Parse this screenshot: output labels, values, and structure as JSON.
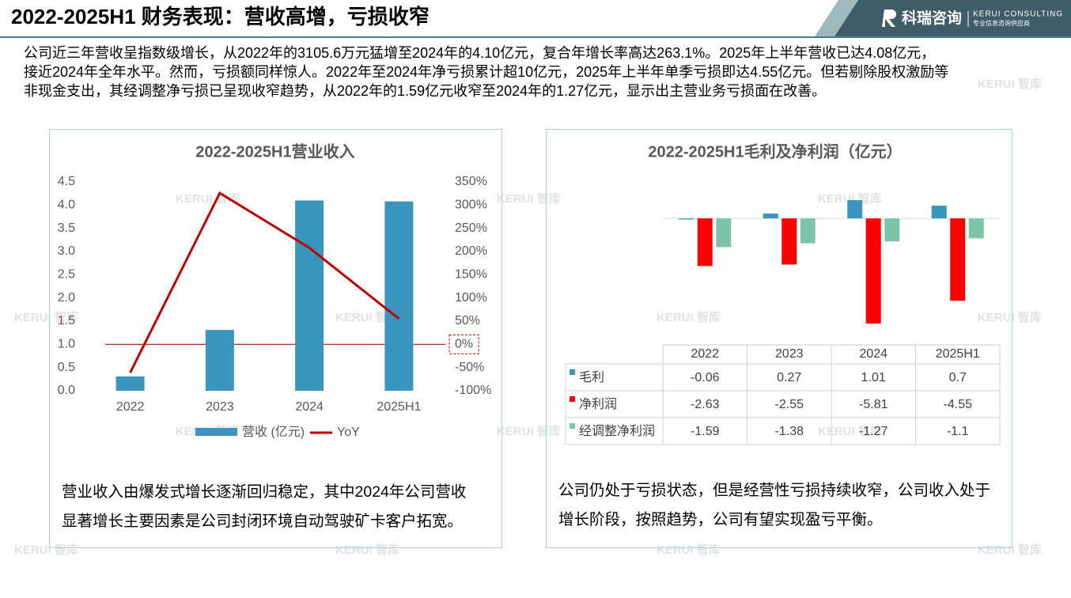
{
  "header": {
    "title": "2022-2025H1 财务表现：营收高增，亏损收窄",
    "brand": "科瑞咨询",
    "brand_en": "KERUI CONSULTING",
    "brand_sub": "专业信息咨询供应商"
  },
  "watermark": "KERUI 智库",
  "intro": [
    "公司近三年营收呈指数级增长，从2022年的3105.6万元猛增至2024年的4.10亿元，复合年增长率高达263.1%。2025年上半年营收已达4.08亿元，",
    "接近2024年全年水平。然而，亏损额同样惊人。2022年至2024年净亏损累计超10亿元，2025年上半年单季亏损即达4.55亿元。但若剔除股权激励等",
    "非现金支出，其经调整净亏损已呈现收窄趋势，从2022年的1.59亿元收窄至2024年的1.27亿元，显示出主营业务亏损面在改善。"
  ],
  "captions": [
    [
      "营业收入由爆发式增长逐渐回归稳定，其中2024年公司营收",
      "显著增长主要因素是公司封闭环境自动驾驶矿卡客户拓宽。"
    ],
    [
      "公司仍处于亏损状态，但是经营性亏损持续收窄，公司收入处于",
      "增长阶段，按照趋势，公司有望实现盈亏平衡。"
    ]
  ],
  "chart_data": [
    {
      "type": "combo",
      "title": "2022-2025H1营业收入",
      "categories": [
        "2022",
        "2023",
        "2024",
        "2025H1"
      ],
      "series": [
        {
          "name": "营收 (亿元)",
          "type": "bar",
          "color": "#3a96bd",
          "values": [
            0.31,
            1.31,
            4.1,
            4.08
          ]
        },
        {
          "name": "YoY",
          "type": "line",
          "axis": "y2",
          "color": "#c00000",
          "values": [
            -61,
            326,
            208,
            55
          ]
        }
      ],
      "ylim": [
        0,
        4.5
      ],
      "yticks": [
        {
          "value": 0,
          "label": "0.0"
        },
        {
          "value": 0.5,
          "label": "0.5"
        },
        {
          "value": 1,
          "label": "1.0"
        },
        {
          "value": 1.5,
          "label": "1.5"
        },
        {
          "value": 2,
          "label": "2.0"
        },
        {
          "value": 2.5,
          "label": "2.5"
        },
        {
          "value": 3,
          "label": "3.0"
        },
        {
          "value": 3.5,
          "label": "3.5"
        },
        {
          "value": 4,
          "label": "4.0"
        },
        {
          "value": 4.5,
          "label": "4.5"
        }
      ],
      "y2lim": [
        -100,
        350
      ],
      "y2ticks": [
        {
          "value": -100,
          "label": "-100%"
        },
        {
          "value": -50,
          "label": "-50%"
        },
        {
          "value": 0,
          "label": "0%"
        },
        {
          "value": 50,
          "label": "50%"
        },
        {
          "value": 100,
          "label": "100%"
        },
        {
          "value": 150,
          "label": "150%"
        },
        {
          "value": 200,
          "label": "200%"
        },
        {
          "value": 250,
          "label": "250%"
        },
        {
          "value": 300,
          "label": "300%"
        },
        {
          "value": 350,
          "label": "350%"
        }
      ],
      "legend": "bottom"
    },
    {
      "type": "bar",
      "title": "2022-2025H1毛利及净利润（亿元）",
      "categories": [
        "2022",
        "2023",
        "2024",
        "2025H1"
      ],
      "series": [
        {
          "name": "毛利",
          "color": "#3a96bd",
          "values": [
            -0.06,
            0.27,
            1.01,
            0.7
          ]
        },
        {
          "name": "净利润",
          "color": "#ff0000",
          "values": [
            -2.63,
            -2.55,
            -5.81,
            -4.55
          ]
        },
        {
          "name": "经调整净利润",
          "color": "#7cc5a9",
          "values": [
            -1.59,
            -1.38,
            -1.27,
            -1.1
          ]
        }
      ],
      "legend": "table"
    }
  ]
}
